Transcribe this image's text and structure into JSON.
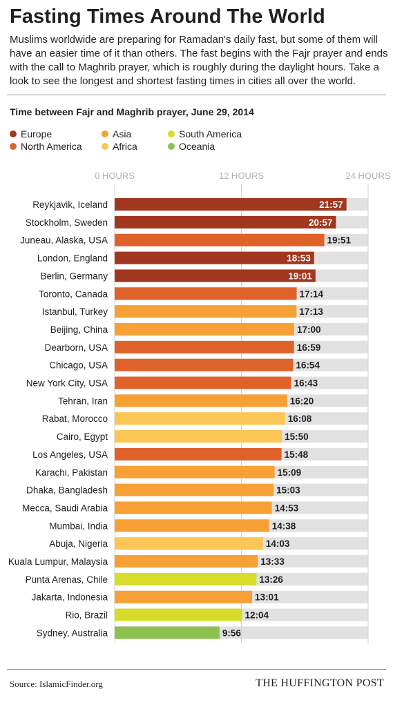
{
  "header": {
    "title": "Fasting Times Around The World",
    "intro": "Muslims worldwide are preparing for Ramadan's daily fast, but some of them will have an easier time of it than others. The fast begins with the Fajr prayer and ends with the call to Maghrib prayer, which is roughly during the daylight hours. Take a look to see the longest and shortest fasting times in cities all over the world."
  },
  "footer": {
    "source": "Source: IslamicFinder.org",
    "brand": "THE HUFFINGTON POST"
  },
  "chart_data": {
    "type": "bar",
    "orientation": "horizontal",
    "title": "Time between Fajr and Maghrib prayer, June 29, 2014",
    "xlim": [
      0,
      24
    ],
    "x_ticks": [
      0,
      12,
      24
    ],
    "x_tick_labels": [
      "0 HOURS",
      "12 HOURS",
      "24 HOURS"
    ],
    "grid": true,
    "legend_position": "top-left",
    "legend": [
      {
        "name": "Europe",
        "color": "#a0371e"
      },
      {
        "name": "North America",
        "color": "#e0622b"
      },
      {
        "name": "Asia",
        "color": "#f7a035"
      },
      {
        "name": "Africa",
        "color": "#fcc656"
      },
      {
        "name": "South America",
        "color": "#d7dc2a"
      },
      {
        "name": "Oceania",
        "color": "#8cc152"
      }
    ],
    "background_bar_color": "#e1e1e2",
    "bars": [
      {
        "city": "Reykjavik, Iceland",
        "region": "Europe",
        "label": "21:57",
        "hours": 21.95
      },
      {
        "city": "Stockholm, Sweden",
        "region": "Europe",
        "label": "20:57",
        "hours": 20.95
      },
      {
        "city": "Juneau, Alaska, USA",
        "region": "North America",
        "label": "19:51",
        "hours": 19.85
      },
      {
        "city": "London, England",
        "region": "Europe",
        "label": "18:53",
        "hours": 18.883
      },
      {
        "city": "Berlin, Germany",
        "region": "Europe",
        "label": "19:01",
        "hours": 19.017
      },
      {
        "city": "Toronto, Canada",
        "region": "North America",
        "label": "17:14",
        "hours": 17.233
      },
      {
        "city": "Istanbul, Turkey",
        "region": "Asia",
        "label": "17:13",
        "hours": 17.217
      },
      {
        "city": "Beijing, China",
        "region": "Asia",
        "label": "17:00",
        "hours": 17.0
      },
      {
        "city": "Dearborn, USA",
        "region": "North America",
        "label": "16:59",
        "hours": 16.983
      },
      {
        "city": "Chicago, USA",
        "region": "North America",
        "label": "16:54",
        "hours": 16.9
      },
      {
        "city": "New York City, USA",
        "region": "North America",
        "label": "16:43",
        "hours": 16.717
      },
      {
        "city": "Tehran, Iran",
        "region": "Asia",
        "label": "16:20",
        "hours": 16.333
      },
      {
        "city": "Rabat, Morocco",
        "region": "Africa",
        "label": "16:08",
        "hours": 16.133
      },
      {
        "city": "Cairo, Egypt",
        "region": "Africa",
        "label": "15:50",
        "hours": 15.833
      },
      {
        "city": "Los Angeles, USA",
        "region": "North America",
        "label": "15:48",
        "hours": 15.8
      },
      {
        "city": "Karachi, Pakistan",
        "region": "Asia",
        "label": "15:09",
        "hours": 15.15
      },
      {
        "city": "Dhaka, Bangladesh",
        "region": "Asia",
        "label": "15:03",
        "hours": 15.05
      },
      {
        "city": "Mecca, Saudi Arabia",
        "region": "Asia",
        "label": "14:53",
        "hours": 14.883
      },
      {
        "city": "Mumbai, India",
        "region": "Asia",
        "label": "14:38",
        "hours": 14.633
      },
      {
        "city": "Abuja, Nigeria",
        "region": "Africa",
        "label": "14:03",
        "hours": 14.05
      },
      {
        "city": "Kuala Lumpur, Malaysia",
        "region": "Asia",
        "label": "13:33",
        "hours": 13.55
      },
      {
        "city": "Punta Arenas, Chile",
        "region": "South America",
        "label": "13:26",
        "hours": 13.433
      },
      {
        "city": "Jakarta, Indonesia",
        "region": "Asia",
        "label": "13:01",
        "hours": 13.017
      },
      {
        "city": "Rio, Brazil",
        "region": "South America",
        "label": "12:04",
        "hours": 12.067
      },
      {
        "city": "Sydney, Australia",
        "region": "Oceania",
        "label": "9:56",
        "hours": 9.933
      }
    ]
  }
}
